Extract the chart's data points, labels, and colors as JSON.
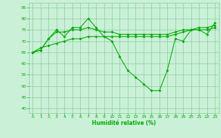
{
  "bg_color": "#caf0d8",
  "grid_color": "#88cc99",
  "line_color": "#00aa00",
  "marker_color": "#00aa00",
  "xlabel": "Humidité relative (%)",
  "xlabel_color": "#00aa00",
  "tick_color": "#00aa00",
  "xlim": [
    -0.5,
    23.5
  ],
  "ylim": [
    38,
    87
  ],
  "yticks": [
    40,
    45,
    50,
    55,
    60,
    65,
    70,
    75,
    80,
    85
  ],
  "xticks": [
    0,
    1,
    2,
    3,
    4,
    5,
    6,
    7,
    8,
    9,
    10,
    11,
    12,
    13,
    14,
    15,
    16,
    17,
    18,
    19,
    20,
    21,
    22,
    23
  ],
  "line1": [
    65,
    66,
    71,
    75,
    72,
    76,
    76,
    80,
    76,
    72,
    70,
    63,
    57,
    54,
    51,
    48,
    48,
    57,
    71,
    70,
    75,
    75,
    73,
    78
  ],
  "line2": [
    65,
    66,
    71,
    74,
    74,
    75,
    75,
    76,
    75,
    74,
    74,
    73,
    73,
    73,
    73,
    73,
    73,
    73,
    74,
    75,
    75,
    76,
    76,
    77
  ],
  "line3": [
    65,
    67,
    68,
    69,
    70,
    71,
    71,
    72,
    72,
    72,
    72,
    72,
    72,
    72,
    72,
    72,
    72,
    72,
    73,
    74,
    75,
    75,
    75,
    76
  ]
}
